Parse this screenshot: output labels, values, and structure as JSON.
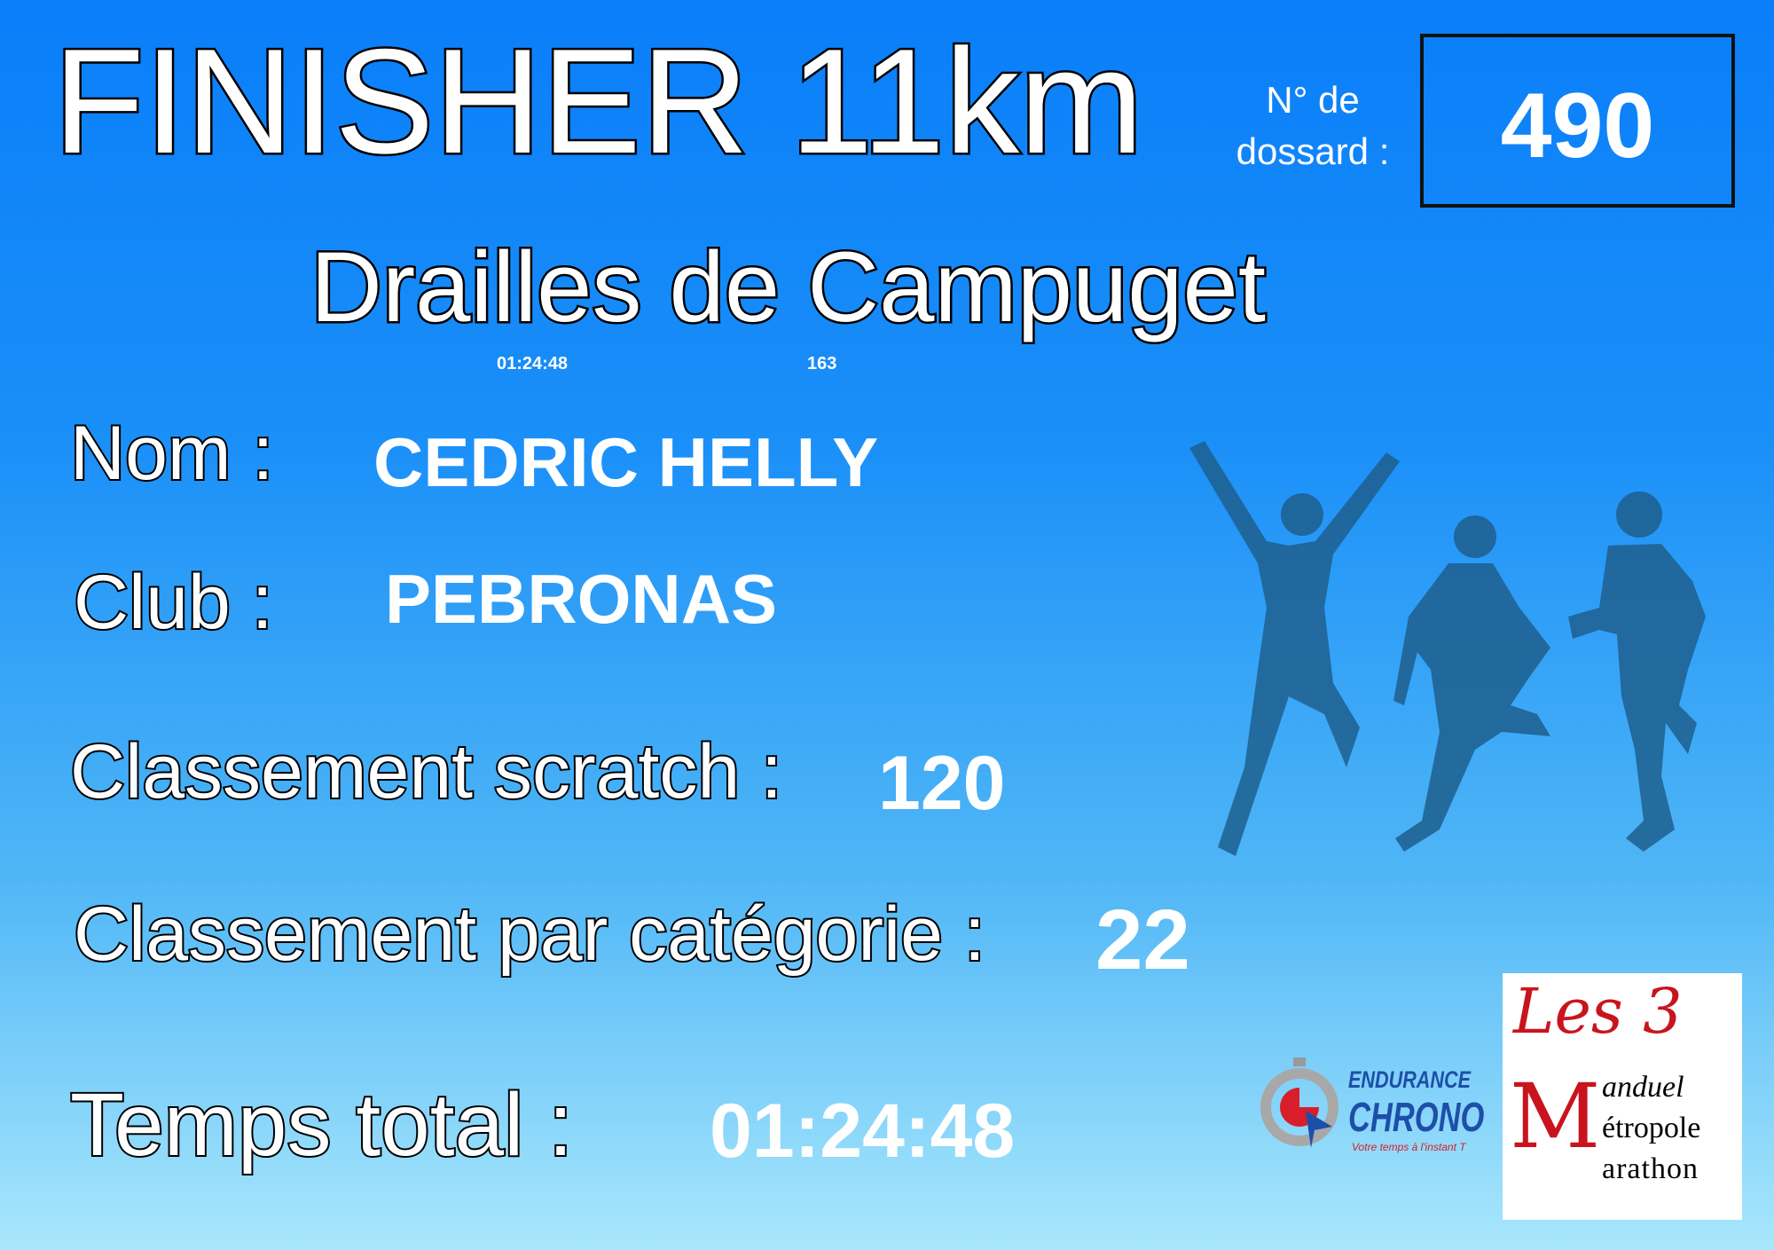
{
  "title": "FINISHER 11km",
  "bib": {
    "label_line1": "N° de",
    "label_line2": "dossard :",
    "number": "490"
  },
  "event": "Drailles de Campuget",
  "overlay": {
    "time": "01:24:48",
    "number": "163"
  },
  "fields": {
    "name": {
      "label": "Nom :",
      "value": "CEDRIC HELLY"
    },
    "club": {
      "label": "Club :",
      "value": "PEBRONAS"
    },
    "scratch": {
      "label": "Classement scratch :",
      "value": "120"
    },
    "category": {
      "label": "Classement par catégorie :",
      "value": "22"
    },
    "time": {
      "label": "Temps total :",
      "value": "01:24:48"
    }
  },
  "logos": {
    "endurance": {
      "line1": "ENDURANCE",
      "line2": "CHRONO",
      "tagline": "Votre temps à l'instant T"
    },
    "marathon": {
      "big": "Les 3",
      "line1": "anduel",
      "line2": "étropole",
      "line3": "arathon"
    }
  },
  "colors": {
    "bg_top": "#0a7ef9",
    "bg_bottom": "#a9e7fc",
    "silhouette": "#1e5f8e",
    "logo_red": "#d81e2a",
    "logo_blue": "#1e4fa8"
  }
}
